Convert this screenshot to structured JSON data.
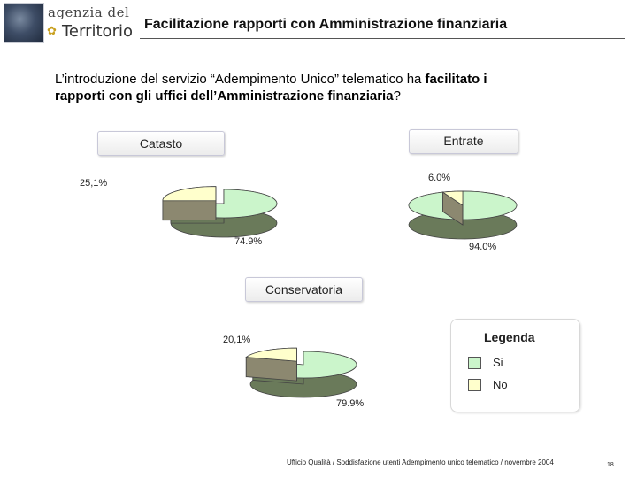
{
  "header": {
    "logo_line1": "agenzia del",
    "logo_line2": "Territorio",
    "title": "Facilitazione rapporti con Amministrazione finanziaria"
  },
  "question": {
    "part1": "L’introduzione del servizio “Adempimento Unico” telematico ha ",
    "bold1": "facilitato i",
    "part2": "rapporti con gli uffici dell’Amministrazione finanziaria",
    "part3": "?"
  },
  "colors": {
    "si": "#cbf5cb",
    "no": "#ffffcc",
    "si_side": "#6a7a5a",
    "no_side": "#8c8870",
    "outline": "#444444"
  },
  "chart_data": [
    {
      "type": "pie",
      "title": "Catasto",
      "categories": [
        "Si",
        "No"
      ],
      "values": [
        74.9,
        25.1
      ],
      "labels": [
        "74.9%",
        "25,1%"
      ]
    },
    {
      "type": "pie",
      "title": "Entrate",
      "categories": [
        "Si",
        "No"
      ],
      "values": [
        94.0,
        6.0
      ],
      "labels": [
        "94.0%",
        "6.0%"
      ]
    },
    {
      "type": "pie",
      "title": "Conservatoria",
      "categories": [
        "Si",
        "No"
      ],
      "values": [
        79.9,
        20.1
      ],
      "labels": [
        "79.9%",
        "20,1%"
      ]
    }
  ],
  "legend": {
    "title": "Legenda",
    "items": [
      "Si",
      "No"
    ]
  },
  "footer": {
    "text": "Ufficio Qualità / Soddisfazione utenti Adempimento unico telematico / novembre 2004",
    "page": "18"
  }
}
